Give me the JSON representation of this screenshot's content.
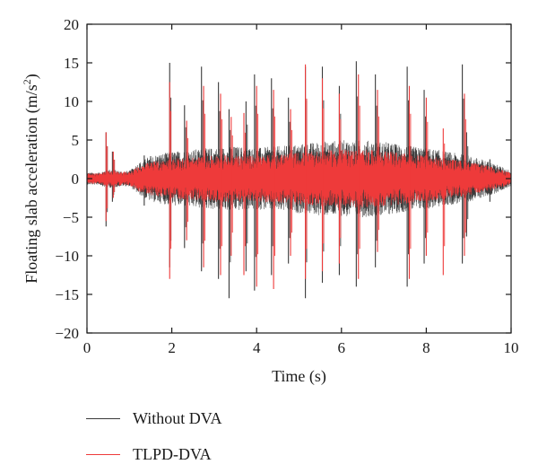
{
  "chart_data": {
    "type": "line",
    "title": "",
    "xlabel": "Time (s)",
    "ylabel_main": "Floating slab acceleration (m/s",
    "ylabel_sup": "2",
    "ylabel_tail": ")",
    "xlim": [
      0,
      10
    ],
    "ylim": [
      -20,
      20
    ],
    "x_ticks": [
      0,
      2,
      4,
      6,
      8,
      10
    ],
    "x_tick_labels": [
      "0",
      "2",
      "4",
      "6",
      "8",
      "10"
    ],
    "y_ticks": [
      -20,
      -15,
      -10,
      -5,
      0,
      5,
      10,
      15,
      20
    ],
    "y_tick_labels": [
      "−20",
      "−15",
      "−10",
      "−5",
      "0",
      "5",
      "10",
      "15",
      "20"
    ],
    "grid": false,
    "legend_position": "bottom",
    "series": [
      {
        "name": "Without DVA",
        "color": "#3a3a3a",
        "envelope": {
          "t": [
            0.0,
            0.3,
            0.45,
            0.6,
            0.8,
            1.0,
            1.2,
            1.5,
            2.0,
            2.5,
            3.0,
            3.5,
            4.0,
            4.5,
            5.0,
            5.5,
            6.0,
            6.5,
            7.0,
            7.5,
            8.0,
            8.5,
            9.0,
            9.5,
            9.8,
            10.0
          ],
          "amp": [
            0.8,
            0.8,
            1.2,
            1.2,
            1.0,
            1.0,
            2.0,
            3.0,
            3.5,
            3.8,
            4.0,
            4.2,
            4.0,
            4.2,
            4.5,
            4.8,
            5.0,
            5.0,
            4.8,
            4.3,
            4.0,
            3.5,
            3.0,
            2.2,
            1.5,
            1.0
          ]
        },
        "peaks": [
          {
            "t": 0.45,
            "pos": 6.0,
            "neg": -6.2
          },
          {
            "t": 0.6,
            "pos": 3.5,
            "neg": -3.0
          },
          {
            "t": 1.35,
            "pos": 3.0,
            "neg": -3.5
          },
          {
            "t": 1.95,
            "pos": 15.0,
            "neg": -11.5
          },
          {
            "t": 2.3,
            "pos": 9.5,
            "neg": -9.0
          },
          {
            "t": 2.7,
            "pos": 14.5,
            "neg": -12.0
          },
          {
            "t": 3.1,
            "pos": 12.5,
            "neg": -13.0
          },
          {
            "t": 3.35,
            "pos": 9.0,
            "neg": -15.5
          },
          {
            "t": 3.75,
            "pos": 10.0,
            "neg": -12.0
          },
          {
            "t": 3.95,
            "pos": 13.5,
            "neg": -14.5
          },
          {
            "t": 4.35,
            "pos": 13.0,
            "neg": -12.5
          },
          {
            "t": 4.75,
            "pos": 10.5,
            "neg": -11.0
          },
          {
            "t": 5.15,
            "pos": 14.5,
            "neg": -15.5
          },
          {
            "t": 5.55,
            "pos": 14.5,
            "neg": -13.5
          },
          {
            "t": 5.95,
            "pos": 12.0,
            "neg": -12.5
          },
          {
            "t": 6.35,
            "pos": 15.2,
            "neg": -14.0
          },
          {
            "t": 6.8,
            "pos": 13.5,
            "neg": -11.5
          },
          {
            "t": 7.55,
            "pos": 14.5,
            "neg": -14.0
          },
          {
            "t": 7.95,
            "pos": 11.5,
            "neg": -11.0
          },
          {
            "t": 8.85,
            "pos": 14.8,
            "neg": -11.0
          },
          {
            "t": 8.95,
            "pos": 6.0,
            "neg": -7.5
          },
          {
            "t": 9.5,
            "pos": 2.5,
            "neg": -3.0
          }
        ]
      },
      {
        "name": "TLPD-DVA",
        "color": "#ee3a3a",
        "envelope": {
          "t": [
            0.0,
            0.3,
            0.45,
            0.6,
            0.8,
            1.0,
            1.2,
            1.5,
            2.0,
            2.5,
            3.0,
            3.5,
            4.0,
            4.5,
            5.0,
            5.5,
            6.0,
            6.5,
            7.0,
            7.5,
            8.0,
            8.5,
            9.0,
            9.5,
            9.8,
            10.0
          ],
          "amp": [
            0.7,
            0.7,
            1.0,
            1.0,
            0.9,
            0.9,
            1.6,
            2.2,
            2.6,
            2.8,
            3.0,
            3.1,
            3.0,
            3.2,
            3.4,
            3.6,
            3.8,
            3.8,
            3.6,
            3.3,
            3.0,
            2.6,
            2.2,
            1.6,
            1.1,
            0.8
          ]
        },
        "peaks": [
          {
            "t": 0.45,
            "pos": 6.0,
            "neg": -5.5
          },
          {
            "t": 0.62,
            "pos": 3.5,
            "neg": -2.5
          },
          {
            "t": 1.95,
            "pos": 12.5,
            "neg": -13.0
          },
          {
            "t": 2.35,
            "pos": 7.5,
            "neg": -8.0
          },
          {
            "t": 2.75,
            "pos": 12.0,
            "neg": -11.5
          },
          {
            "t": 3.15,
            "pos": 11.0,
            "neg": -12.5
          },
          {
            "t": 3.4,
            "pos": 8.0,
            "neg": -10.0
          },
          {
            "t": 3.7,
            "pos": 8.5,
            "neg": -12.5
          },
          {
            "t": 4.0,
            "pos": 12.0,
            "neg": -14.0
          },
          {
            "t": 4.4,
            "pos": 11.5,
            "neg": -14.3
          },
          {
            "t": 4.8,
            "pos": 9.0,
            "neg": -10.0
          },
          {
            "t": 5.15,
            "pos": 14.8,
            "neg": -13.0
          },
          {
            "t": 5.55,
            "pos": 13.0,
            "neg": -12.0
          },
          {
            "t": 5.95,
            "pos": 11.0,
            "neg": -11.0
          },
          {
            "t": 6.4,
            "pos": 13.5,
            "neg": -13.0
          },
          {
            "t": 6.85,
            "pos": 11.5,
            "neg": -9.5
          },
          {
            "t": 7.6,
            "pos": 12.0,
            "neg": -13.0
          },
          {
            "t": 8.0,
            "pos": 10.5,
            "neg": -10.0
          },
          {
            "t": 8.4,
            "pos": 6.5,
            "neg": -12.5
          },
          {
            "t": 8.9,
            "pos": 11.0,
            "neg": -10.0
          }
        ]
      }
    ]
  }
}
